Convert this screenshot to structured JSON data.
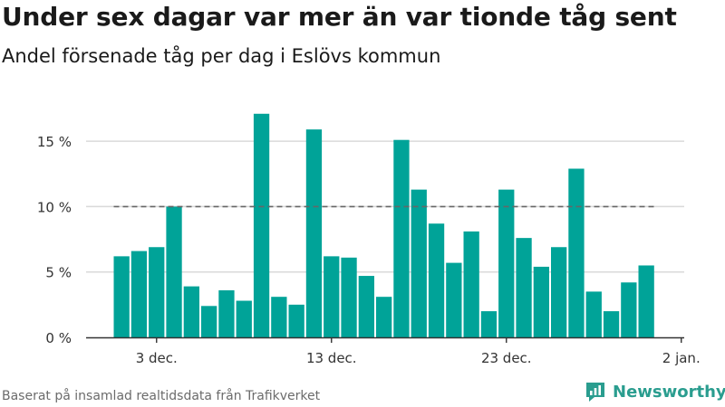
{
  "header": {
    "title": "Under sex dagar var mer än var tionde tåg sent",
    "subtitle": "Andel försenade tåg per dag i Eslövs kommun"
  },
  "footer": {
    "source": "Baserat på insamlad realtidsdata från Trafikverket",
    "brand": "Newsworthy"
  },
  "colors": {
    "bar": "#00a398",
    "grid": "#d9d9d9",
    "threshold": "#666666",
    "brand": "#2a9d8f"
  },
  "chart_data": {
    "type": "bar",
    "title": "Under sex dagar var mer än var tionde tåg sent",
    "subtitle": "Andel försenade tåg per dag i Eslövs kommun",
    "xlabel": "",
    "ylabel": "",
    "categories": [
      "1 dec.",
      "2 dec.",
      "3 dec.",
      "4 dec.",
      "5 dec.",
      "6 dec.",
      "7 dec.",
      "8 dec.",
      "9 dec.",
      "10 dec.",
      "11 dec.",
      "12 dec.",
      "13 dec.",
      "14 dec.",
      "15 dec.",
      "16 dec.",
      "17 dec.",
      "18 dec.",
      "19 dec.",
      "20 dec.",
      "21 dec.",
      "22 dec.",
      "23 dec.",
      "24 dec.",
      "25 dec.",
      "26 dec.",
      "27 dec.",
      "28 dec.",
      "29 dec.",
      "30 dec.",
      "31 dec."
    ],
    "values": [
      6.2,
      6.6,
      6.9,
      10.0,
      3.9,
      2.4,
      3.6,
      2.8,
      17.1,
      3.1,
      2.5,
      15.9,
      6.2,
      6.1,
      4.7,
      3.1,
      15.1,
      11.3,
      8.7,
      5.7,
      8.1,
      2.0,
      11.3,
      7.6,
      5.4,
      6.9,
      12.9,
      3.5,
      2.0,
      4.2,
      5.5
    ],
    "ylim": [
      0,
      17.5
    ],
    "yticks": [
      0,
      5,
      10,
      15
    ],
    "ytick_labels": [
      "0 %",
      "5 %",
      "10 %",
      "15 %"
    ],
    "xticks": [
      {
        "label": "3 dec.",
        "x": 3
      },
      {
        "label": "13 dec.",
        "x": 13
      },
      {
        "label": "23 dec.",
        "x": 23
      },
      {
        "label": "2 jan.",
        "x": 33
      }
    ],
    "threshold": 10,
    "grid": true,
    "legend": "none"
  }
}
